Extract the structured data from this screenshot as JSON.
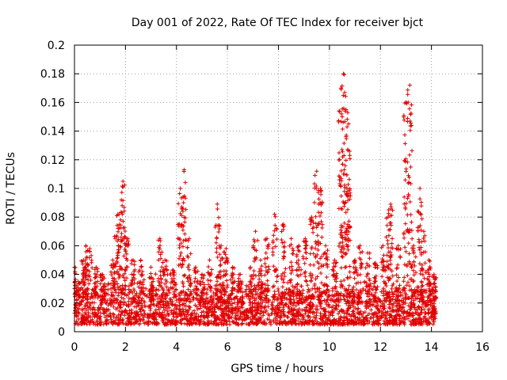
{
  "chart_data": {
    "type": "scatter",
    "title": "Day 001 of 2022, Rate Of TEC Index for receiver bjct",
    "xlabel": "GPS time / hours",
    "ylabel": "ROTI / TECUs",
    "xlim": [
      0,
      16
    ],
    "ylim": [
      0,
      0.2
    ],
    "grid": true,
    "marker": "+",
    "color": "#e00000",
    "x_ticks": [
      "0",
      "2",
      "4",
      "6",
      "8",
      "10",
      "12",
      "14",
      "16"
    ],
    "y_ticks": [
      "0",
      "0.02",
      "0.04",
      "0.06",
      "0.08",
      "0.1",
      "0.12",
      "0.14",
      "0.16",
      "0.18",
      "0.2"
    ],
    "series": [
      {
        "name": "ROTI",
        "baseline_range": [
          0.005,
          0.03
        ],
        "x_range": [
          0,
          14.2
        ],
        "peaks": [
          {
            "x": 0.0,
            "y": 0.045
          },
          {
            "x": 0.15,
            "y": 0.035
          },
          {
            "x": 0.35,
            "y": 0.05
          },
          {
            "x": 0.45,
            "y": 0.06
          },
          {
            "x": 0.6,
            "y": 0.058
          },
          {
            "x": 0.85,
            "y": 0.045
          },
          {
            "x": 1.1,
            "y": 0.04
          },
          {
            "x": 1.5,
            "y": 0.05
          },
          {
            "x": 1.65,
            "y": 0.067
          },
          {
            "x": 1.75,
            "y": 0.082
          },
          {
            "x": 1.9,
            "y": 0.105
          },
          {
            "x": 2.05,
            "y": 0.065
          },
          {
            "x": 2.3,
            "y": 0.05
          },
          {
            "x": 2.6,
            "y": 0.05
          },
          {
            "x": 3.0,
            "y": 0.045
          },
          {
            "x": 3.35,
            "y": 0.065
          },
          {
            "x": 3.55,
            "y": 0.05
          },
          {
            "x": 3.85,
            "y": 0.043
          },
          {
            "x": 4.15,
            "y": 0.1
          },
          {
            "x": 4.3,
            "y": 0.113
          },
          {
            "x": 4.5,
            "y": 0.065
          },
          {
            "x": 4.75,
            "y": 0.045
          },
          {
            "x": 5.0,
            "y": 0.04
          },
          {
            "x": 5.3,
            "y": 0.05
          },
          {
            "x": 5.6,
            "y": 0.089
          },
          {
            "x": 5.75,
            "y": 0.06
          },
          {
            "x": 5.95,
            "y": 0.058
          },
          {
            "x": 6.2,
            "y": 0.045
          },
          {
            "x": 6.5,
            "y": 0.04
          },
          {
            "x": 6.9,
            "y": 0.045
          },
          {
            "x": 7.1,
            "y": 0.07
          },
          {
            "x": 7.3,
            "y": 0.05
          },
          {
            "x": 7.55,
            "y": 0.065
          },
          {
            "x": 7.85,
            "y": 0.082
          },
          {
            "x": 8.2,
            "y": 0.075
          },
          {
            "x": 8.5,
            "y": 0.065
          },
          {
            "x": 8.8,
            "y": 0.06
          },
          {
            "x": 9.05,
            "y": 0.065
          },
          {
            "x": 9.3,
            "y": 0.08
          },
          {
            "x": 9.5,
            "y": 0.112
          },
          {
            "x": 9.65,
            "y": 0.1
          },
          {
            "x": 9.85,
            "y": 0.06
          },
          {
            "x": 10.2,
            "y": 0.05
          },
          {
            "x": 10.45,
            "y": 0.17
          },
          {
            "x": 10.55,
            "y": 0.18
          },
          {
            "x": 10.65,
            "y": 0.155
          },
          {
            "x": 10.75,
            "y": 0.145
          },
          {
            "x": 11.0,
            "y": 0.05
          },
          {
            "x": 11.2,
            "y": 0.06
          },
          {
            "x": 11.5,
            "y": 0.055
          },
          {
            "x": 11.8,
            "y": 0.048
          },
          {
            "x": 12.1,
            "y": 0.06
          },
          {
            "x": 12.3,
            "y": 0.08
          },
          {
            "x": 12.4,
            "y": 0.089
          },
          {
            "x": 12.7,
            "y": 0.06
          },
          {
            "x": 13.0,
            "y": 0.16
          },
          {
            "x": 13.15,
            "y": 0.172
          },
          {
            "x": 13.3,
            "y": 0.06
          },
          {
            "x": 13.55,
            "y": 0.1
          },
          {
            "x": 13.7,
            "y": 0.07
          },
          {
            "x": 13.9,
            "y": 0.05
          },
          {
            "x": 14.1,
            "y": 0.04
          }
        ]
      }
    ]
  }
}
